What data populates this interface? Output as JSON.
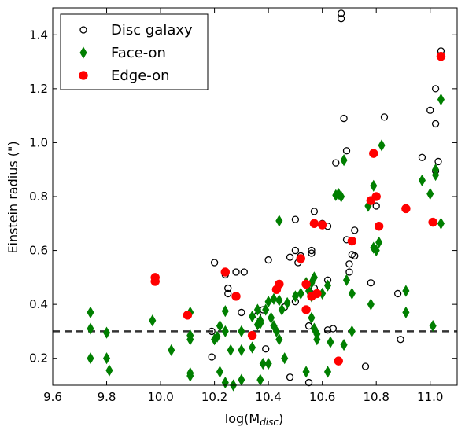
{
  "chart_data": {
    "type": "scatter",
    "xlabel": "log(M",
    "xlabel_sub": "disc",
    "xlabel_close": ")",
    "ylabel": "Einstein radius (\")",
    "xlim": [
      9.6,
      11.1
    ],
    "ylim": [
      0.1,
      1.5
    ],
    "xticks": [
      9.6,
      9.8,
      10.0,
      10.2,
      10.4,
      10.6,
      10.8,
      11.0
    ],
    "xtick_labels": [
      "9.6",
      "9.8",
      "10.0",
      "10.2",
      "10.4",
      "10.6",
      "10.8",
      "11.0"
    ],
    "yticks": [
      0.2,
      0.4,
      0.6,
      0.8,
      1.0,
      1.2,
      1.4
    ],
    "ytick_labels": [
      "0.2",
      "0.4",
      "0.6",
      "0.8",
      "1.0",
      "1.2",
      "1.4"
    ],
    "threshold": {
      "y": 0.3,
      "style": "dashed",
      "color": "#333333"
    },
    "legend_position": "top-left",
    "colors": {
      "disc": "#000000",
      "faceon": "#007f00",
      "edgeon": "#ff0000"
    },
    "series": [
      {
        "name": "Disc galaxy",
        "marker": "open-circle",
        "points": [
          [
            10.2,
            0.555
          ],
          [
            10.28,
            0.52
          ],
          [
            10.31,
            0.52
          ],
          [
            10.4,
            0.565
          ],
          [
            10.24,
            0.51
          ],
          [
            10.25,
            0.46
          ],
          [
            10.25,
            0.44
          ],
          [
            10.28,
            0.43
          ],
          [
            10.38,
            0.38
          ],
          [
            10.39,
            0.235
          ],
          [
            10.46,
            0.39
          ],
          [
            10.48,
            0.575
          ],
          [
            10.5,
            0.6
          ],
          [
            10.5,
            0.715
          ],
          [
            10.51,
            0.555
          ],
          [
            10.52,
            0.58
          ],
          [
            10.55,
            0.32
          ],
          [
            10.56,
            0.59
          ],
          [
            10.56,
            0.6
          ],
          [
            10.57,
            0.745
          ],
          [
            10.57,
            0.46
          ],
          [
            10.6,
            0.7
          ],
          [
            10.62,
            0.69
          ],
          [
            10.62,
            0.49
          ],
          [
            10.62,
            0.305
          ],
          [
            10.64,
            0.31
          ],
          [
            10.65,
            0.925
          ],
          [
            10.67,
            1.48
          ],
          [
            10.67,
            1.46
          ],
          [
            10.68,
            1.09
          ],
          [
            10.69,
            0.97
          ],
          [
            10.69,
            0.64
          ],
          [
            10.7,
            0.55
          ],
          [
            10.7,
            0.52
          ],
          [
            10.71,
            0.585
          ],
          [
            10.72,
            0.58
          ],
          [
            10.72,
            0.675
          ],
          [
            10.76,
            0.17
          ],
          [
            10.78,
            0.48
          ],
          [
            10.8,
            0.765
          ],
          [
            10.83,
            1.095
          ],
          [
            10.88,
            0.44
          ],
          [
            10.89,
            0.27
          ],
          [
            10.97,
            0.945
          ],
          [
            11.0,
            1.12
          ],
          [
            11.02,
            1.2
          ],
          [
            11.02,
            1.07
          ],
          [
            11.02,
            0.895
          ],
          [
            11.03,
            0.93
          ],
          [
            11.04,
            1.34
          ],
          [
            10.19,
            0.3
          ],
          [
            10.19,
            0.205
          ],
          [
            10.3,
            0.37
          ],
          [
            10.36,
            0.36
          ],
          [
            10.48,
            0.13
          ],
          [
            10.5,
            0.41
          ],
          [
            10.55,
            0.11
          ]
        ]
      },
      {
        "name": "Face-on",
        "marker": "thin-diamond",
        "points": [
          [
            9.74,
            0.37
          ],
          [
            9.74,
            0.31
          ],
          [
            9.74,
            0.2
          ],
          [
            9.8,
            0.295
          ],
          [
            9.8,
            0.2
          ],
          [
            9.81,
            0.155
          ],
          [
            9.97,
            0.34
          ],
          [
            10.04,
            0.23
          ],
          [
            10.11,
            0.37
          ],
          [
            10.11,
            0.285
          ],
          [
            10.11,
            0.27
          ],
          [
            10.11,
            0.145
          ],
          [
            10.11,
            0.135
          ],
          [
            10.2,
            0.27
          ],
          [
            10.21,
            0.28
          ],
          [
            10.22,
            0.32
          ],
          [
            10.22,
            0.15
          ],
          [
            10.24,
            0.375
          ],
          [
            10.24,
            0.3
          ],
          [
            10.24,
            0.11
          ],
          [
            10.26,
            0.23
          ],
          [
            10.27,
            0.1
          ],
          [
            10.3,
            0.3
          ],
          [
            10.3,
            0.23
          ],
          [
            10.3,
            0.12
          ],
          [
            10.34,
            0.355
          ],
          [
            10.34,
            0.24
          ],
          [
            10.36,
            0.38
          ],
          [
            10.36,
            0.325
          ],
          [
            10.37,
            0.34
          ],
          [
            10.37,
            0.33
          ],
          [
            10.37,
            0.12
          ],
          [
            10.38,
            0.18
          ],
          [
            10.39,
            0.38
          ],
          [
            10.4,
            0.41
          ],
          [
            10.4,
            0.18
          ],
          [
            10.41,
            0.35
          ],
          [
            10.42,
            0.42
          ],
          [
            10.42,
            0.32
          ],
          [
            10.43,
            0.3
          ],
          [
            10.44,
            0.71
          ],
          [
            10.44,
            0.415
          ],
          [
            10.44,
            0.27
          ],
          [
            10.45,
            0.38
          ],
          [
            10.46,
            0.2
          ],
          [
            10.47,
            0.405
          ],
          [
            10.5,
            0.43
          ],
          [
            10.52,
            0.44
          ],
          [
            10.54,
            0.15
          ],
          [
            10.55,
            0.45
          ],
          [
            10.56,
            0.48
          ],
          [
            10.56,
            0.43
          ],
          [
            10.56,
            0.35
          ],
          [
            10.57,
            0.5
          ],
          [
            10.57,
            0.31
          ],
          [
            10.58,
            0.29
          ],
          [
            10.58,
            0.27
          ],
          [
            10.6,
            0.44
          ],
          [
            10.62,
            0.47
          ],
          [
            10.62,
            0.15
          ],
          [
            10.63,
            0.26
          ],
          [
            10.65,
            0.805
          ],
          [
            10.66,
            0.81
          ],
          [
            10.67,
            0.8
          ],
          [
            10.68,
            0.935
          ],
          [
            10.68,
            0.25
          ],
          [
            10.69,
            0.49
          ],
          [
            10.71,
            0.44
          ],
          [
            10.71,
            0.3
          ],
          [
            10.77,
            0.765
          ],
          [
            10.78,
            0.4
          ],
          [
            10.79,
            0.84
          ],
          [
            10.79,
            0.61
          ],
          [
            10.8,
            0.6
          ],
          [
            10.81,
            0.63
          ],
          [
            10.82,
            0.99
          ],
          [
            10.91,
            0.45
          ],
          [
            10.91,
            0.37
          ],
          [
            10.97,
            0.86
          ],
          [
            11.0,
            0.81
          ],
          [
            11.01,
            0.32
          ],
          [
            11.02,
            0.9
          ],
          [
            11.02,
            0.88
          ],
          [
            11.04,
            0.7
          ],
          [
            11.04,
            1.16
          ],
          [
            10.54,
            0.48
          ]
        ]
      },
      {
        "name": "Edge-on",
        "marker": "filled-circle",
        "points": [
          [
            9.98,
            0.5
          ],
          [
            9.98,
            0.485
          ],
          [
            10.1,
            0.36
          ],
          [
            10.24,
            0.52
          ],
          [
            10.28,
            0.43
          ],
          [
            10.34,
            0.285
          ],
          [
            10.43,
            0.455
          ],
          [
            10.44,
            0.475
          ],
          [
            10.52,
            0.57
          ],
          [
            10.54,
            0.38
          ],
          [
            10.54,
            0.475
          ],
          [
            10.56,
            0.43
          ],
          [
            10.57,
            0.7
          ],
          [
            10.58,
            0.44
          ],
          [
            10.6,
            0.695
          ],
          [
            10.66,
            0.19
          ],
          [
            10.71,
            0.635
          ],
          [
            10.78,
            0.785
          ],
          [
            10.79,
            0.96
          ],
          [
            10.8,
            0.8
          ],
          [
            10.81,
            0.69
          ],
          [
            10.91,
            0.755
          ],
          [
            11.01,
            0.705
          ],
          [
            11.04,
            1.32
          ]
        ]
      }
    ]
  }
}
